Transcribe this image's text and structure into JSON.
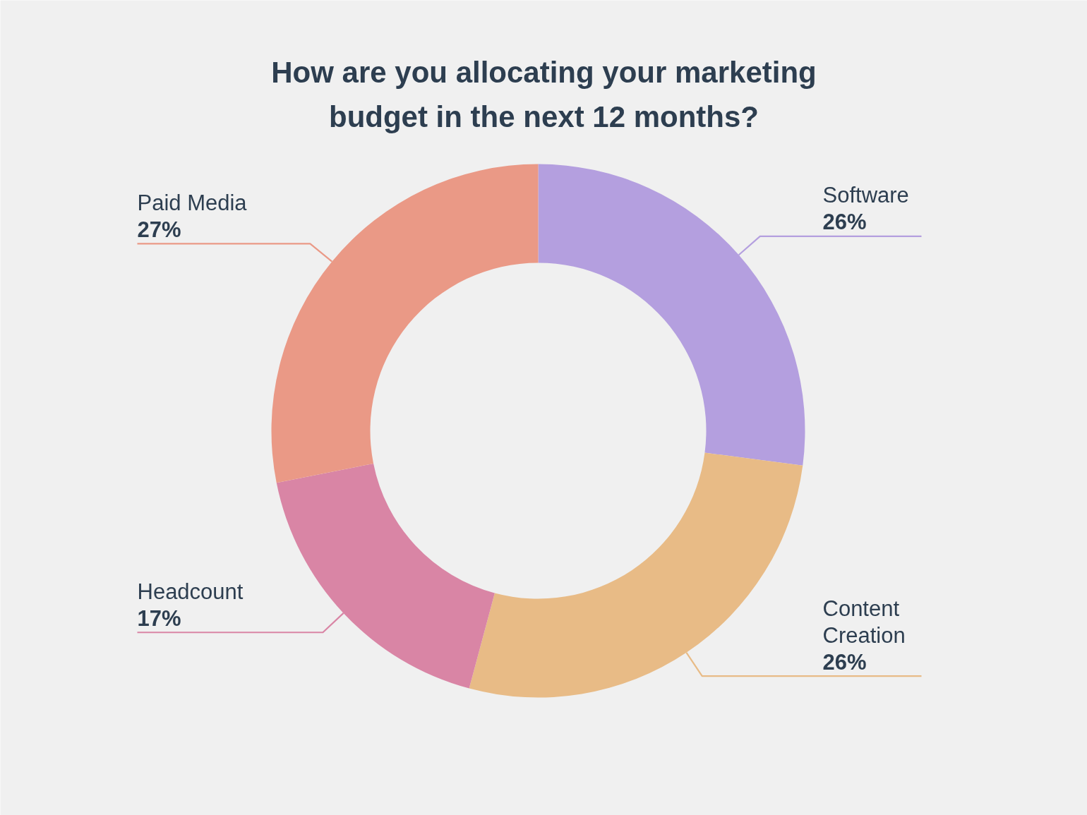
{
  "chart_data": {
    "type": "donut",
    "title": "How are you allocating your marketing budget in the next 12 months?",
    "categories": [
      "Software",
      "Content Creation",
      "Headcount",
      "Paid Media"
    ],
    "values": [
      26,
      26,
      17,
      27
    ],
    "colors": [
      "#b49fdf",
      "#e8bb86",
      "#d985a5",
      "#ea9986"
    ],
    "value_labels": [
      "26%",
      "26%",
      "17%",
      "27%"
    ]
  }
}
